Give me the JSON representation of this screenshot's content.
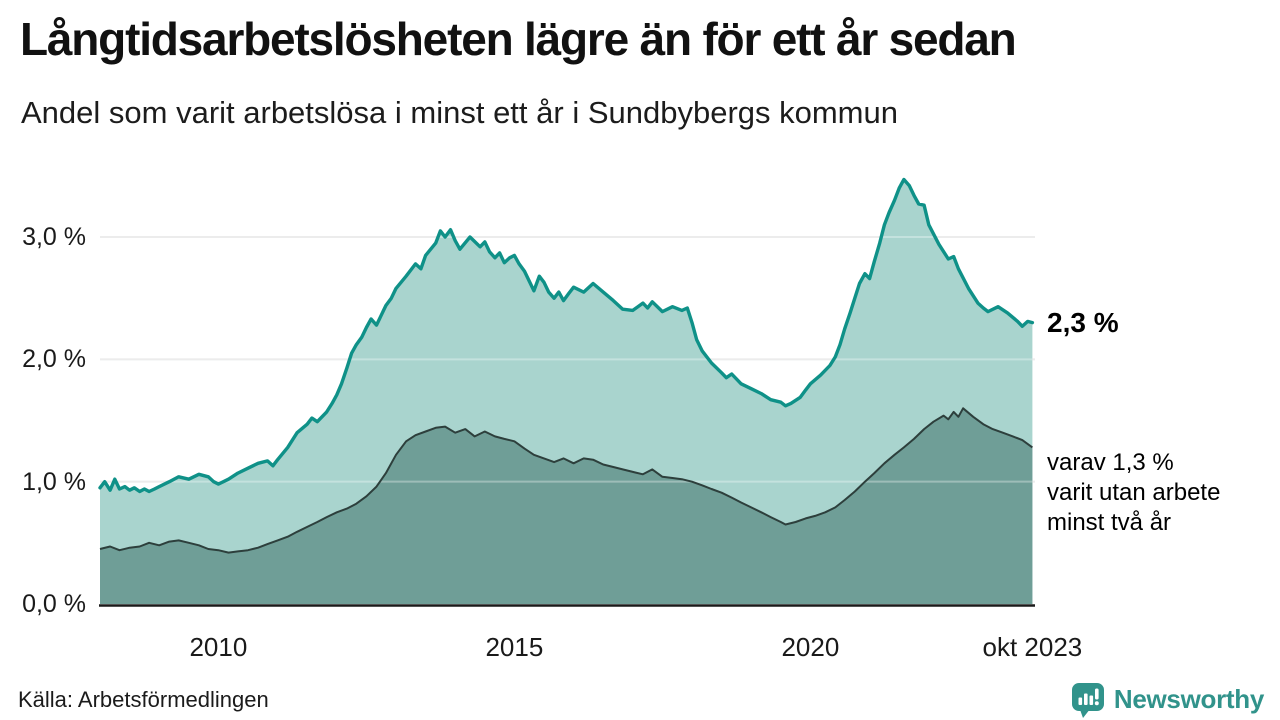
{
  "colors": {
    "accent_teal": "#0f9188",
    "light_fill": "#a9d4ce",
    "dark_fill": "#6f9e97",
    "dark_line": "#2d3f3c",
    "grid": "#e3e4e4",
    "baseline": "#1a1a1a",
    "brand_teal": "#31938b"
  },
  "source": {
    "text": "Källa: Arbetsförmedlingen"
  },
  "brand": {
    "name": "Newsworthy",
    "icon": "speech-bubble-bar-chart-icon"
  },
  "chart_data": {
    "type": "area",
    "title": "Långtidsarbetslösheten lägre än för ett år sedan",
    "subtitle": "Andel som varit arbetslösa i minst ett år i Sundbybergs kommun",
    "grid": true,
    "legend_position": "right-annotations",
    "x_axis": {
      "range": [
        2008.0,
        2023.79
      ],
      "ticks": [
        {
          "label": "2010",
          "year": 2010.0
        },
        {
          "label": "2015",
          "year": 2015.0
        },
        {
          "label": "2020",
          "year": 2020.0
        },
        {
          "label": "okt 2023",
          "year": 2023.75
        }
      ]
    },
    "y_axis": {
      "unit": "%",
      "range": [
        0,
        3.6
      ],
      "ticks": [
        {
          "label": "0,0 %",
          "value": 0
        },
        {
          "label": "1,0 %",
          "value": 1
        },
        {
          "label": "2,0 %",
          "value": 2
        },
        {
          "label": "3,0 %",
          "value": 3
        }
      ]
    },
    "annotations": {
      "latest": {
        "text": "2,3 %",
        "value": 2.3
      },
      "secondary": {
        "lines": [
          "varav 1,3 %",
          "varit utan arbete",
          "minst två år"
        ],
        "value": 1.3
      }
    },
    "series": [
      {
        "name": "Andel som varit arbetslösa minst ett år",
        "color": "#0f9188",
        "fill": "#a9d4ce",
        "latest_value": 2.3,
        "points": [
          [
            2008.0,
            0.95
          ],
          [
            2008.08,
            1.0
          ],
          [
            2008.17,
            0.93
          ],
          [
            2008.25,
            1.02
          ],
          [
            2008.33,
            0.94
          ],
          [
            2008.42,
            0.96
          ],
          [
            2008.5,
            0.93
          ],
          [
            2008.58,
            0.95
          ],
          [
            2008.67,
            0.92
          ],
          [
            2008.75,
            0.94
          ],
          [
            2008.83,
            0.92
          ],
          [
            2008.92,
            0.94
          ],
          [
            2009.0,
            0.96
          ],
          [
            2009.17,
            1.0
          ],
          [
            2009.33,
            1.04
          ],
          [
            2009.5,
            1.02
          ],
          [
            2009.67,
            1.06
          ],
          [
            2009.83,
            1.04
          ],
          [
            2009.92,
            1.0
          ],
          [
            2010.0,
            0.98
          ],
          [
            2010.17,
            1.02
          ],
          [
            2010.33,
            1.07
          ],
          [
            2010.5,
            1.11
          ],
          [
            2010.67,
            1.15
          ],
          [
            2010.83,
            1.17
          ],
          [
            2010.92,
            1.13
          ],
          [
            2011.0,
            1.18
          ],
          [
            2011.17,
            1.28
          ],
          [
            2011.33,
            1.4
          ],
          [
            2011.5,
            1.47
          ],
          [
            2011.58,
            1.52
          ],
          [
            2011.67,
            1.49
          ],
          [
            2011.83,
            1.57
          ],
          [
            2011.92,
            1.64
          ],
          [
            2012.0,
            1.71
          ],
          [
            2012.08,
            1.8
          ],
          [
            2012.17,
            1.93
          ],
          [
            2012.25,
            2.05
          ],
          [
            2012.33,
            2.12
          ],
          [
            2012.42,
            2.18
          ],
          [
            2012.5,
            2.26
          ],
          [
            2012.58,
            2.33
          ],
          [
            2012.67,
            2.28
          ],
          [
            2012.75,
            2.36
          ],
          [
            2012.83,
            2.44
          ],
          [
            2012.92,
            2.5
          ],
          [
            2013.0,
            2.58
          ],
          [
            2013.17,
            2.68
          ],
          [
            2013.33,
            2.78
          ],
          [
            2013.42,
            2.74
          ],
          [
            2013.5,
            2.85
          ],
          [
            2013.67,
            2.95
          ],
          [
            2013.75,
            3.05
          ],
          [
            2013.83,
            3.0
          ],
          [
            2013.92,
            3.06
          ],
          [
            2014.0,
            2.97
          ],
          [
            2014.08,
            2.9
          ],
          [
            2014.25,
            3.0
          ],
          [
            2014.42,
            2.92
          ],
          [
            2014.5,
            2.96
          ],
          [
            2014.58,
            2.88
          ],
          [
            2014.67,
            2.83
          ],
          [
            2014.75,
            2.87
          ],
          [
            2014.83,
            2.79
          ],
          [
            2014.92,
            2.83
          ],
          [
            2015.0,
            2.85
          ],
          [
            2015.08,
            2.78
          ],
          [
            2015.17,
            2.72
          ],
          [
            2015.25,
            2.64
          ],
          [
            2015.33,
            2.56
          ],
          [
            2015.42,
            2.68
          ],
          [
            2015.5,
            2.63
          ],
          [
            2015.58,
            2.55
          ],
          [
            2015.67,
            2.5
          ],
          [
            2015.75,
            2.55
          ],
          [
            2015.83,
            2.48
          ],
          [
            2015.92,
            2.54
          ],
          [
            2016.0,
            2.59
          ],
          [
            2016.17,
            2.55
          ],
          [
            2016.33,
            2.62
          ],
          [
            2016.5,
            2.55
          ],
          [
            2016.67,
            2.48
          ],
          [
            2016.83,
            2.41
          ],
          [
            2017.0,
            2.4
          ],
          [
            2017.17,
            2.46
          ],
          [
            2017.25,
            2.42
          ],
          [
            2017.33,
            2.47
          ],
          [
            2017.5,
            2.39
          ],
          [
            2017.67,
            2.43
          ],
          [
            2017.83,
            2.4
          ],
          [
            2017.92,
            2.42
          ],
          [
            2018.0,
            2.3
          ],
          [
            2018.08,
            2.16
          ],
          [
            2018.17,
            2.07
          ],
          [
            2018.33,
            1.97
          ],
          [
            2018.5,
            1.89
          ],
          [
            2018.58,
            1.85
          ],
          [
            2018.67,
            1.88
          ],
          [
            2018.83,
            1.8
          ],
          [
            2019.0,
            1.76
          ],
          [
            2019.17,
            1.72
          ],
          [
            2019.33,
            1.67
          ],
          [
            2019.5,
            1.65
          ],
          [
            2019.58,
            1.62
          ],
          [
            2019.67,
            1.64
          ],
          [
            2019.83,
            1.69
          ],
          [
            2019.92,
            1.75
          ],
          [
            2020.0,
            1.8
          ],
          [
            2020.17,
            1.87
          ],
          [
            2020.33,
            1.95
          ],
          [
            2020.42,
            2.02
          ],
          [
            2020.5,
            2.12
          ],
          [
            2020.58,
            2.25
          ],
          [
            2020.67,
            2.38
          ],
          [
            2020.75,
            2.5
          ],
          [
            2020.83,
            2.62
          ],
          [
            2020.92,
            2.7
          ],
          [
            2021.0,
            2.66
          ],
          [
            2021.08,
            2.8
          ],
          [
            2021.17,
            2.95
          ],
          [
            2021.25,
            3.1
          ],
          [
            2021.33,
            3.2
          ],
          [
            2021.42,
            3.3
          ],
          [
            2021.5,
            3.4
          ],
          [
            2021.58,
            3.47
          ],
          [
            2021.67,
            3.42
          ],
          [
            2021.75,
            3.34
          ],
          [
            2021.83,
            3.27
          ],
          [
            2021.92,
            3.26
          ],
          [
            2022.0,
            3.1
          ],
          [
            2022.17,
            2.94
          ],
          [
            2022.33,
            2.82
          ],
          [
            2022.42,
            2.84
          ],
          [
            2022.5,
            2.74
          ],
          [
            2022.67,
            2.58
          ],
          [
            2022.83,
            2.46
          ],
          [
            2022.92,
            2.42
          ],
          [
            2023.0,
            2.39
          ],
          [
            2023.17,
            2.43
          ],
          [
            2023.33,
            2.38
          ],
          [
            2023.5,
            2.31
          ],
          [
            2023.58,
            2.27
          ],
          [
            2023.67,
            2.31
          ],
          [
            2023.75,
            2.3
          ]
        ]
      },
      {
        "name": "varav utan arbete minst två år",
        "color": "#2d3f3c",
        "fill": "#6f9e97",
        "latest_value": 1.3,
        "points": [
          [
            2008.0,
            0.45
          ],
          [
            2008.17,
            0.47
          ],
          [
            2008.33,
            0.44
          ],
          [
            2008.5,
            0.46
          ],
          [
            2008.67,
            0.47
          ],
          [
            2008.83,
            0.5
          ],
          [
            2009.0,
            0.48
          ],
          [
            2009.17,
            0.51
          ],
          [
            2009.33,
            0.52
          ],
          [
            2009.5,
            0.5
          ],
          [
            2009.67,
            0.48
          ],
          [
            2009.83,
            0.45
          ],
          [
            2010.0,
            0.44
          ],
          [
            2010.17,
            0.42
          ],
          [
            2010.33,
            0.43
          ],
          [
            2010.5,
            0.44
          ],
          [
            2010.67,
            0.46
          ],
          [
            2010.83,
            0.49
          ],
          [
            2011.0,
            0.52
          ],
          [
            2011.17,
            0.55
          ],
          [
            2011.33,
            0.59
          ],
          [
            2011.5,
            0.63
          ],
          [
            2011.67,
            0.67
          ],
          [
            2011.83,
            0.71
          ],
          [
            2012.0,
            0.75
          ],
          [
            2012.17,
            0.78
          ],
          [
            2012.33,
            0.82
          ],
          [
            2012.5,
            0.88
          ],
          [
            2012.67,
            0.96
          ],
          [
            2012.83,
            1.07
          ],
          [
            2013.0,
            1.22
          ],
          [
            2013.17,
            1.33
          ],
          [
            2013.33,
            1.38
          ],
          [
            2013.5,
            1.41
          ],
          [
            2013.67,
            1.44
          ],
          [
            2013.83,
            1.45
          ],
          [
            2014.0,
            1.4
          ],
          [
            2014.17,
            1.43
          ],
          [
            2014.33,
            1.37
          ],
          [
            2014.5,
            1.41
          ],
          [
            2014.67,
            1.37
          ],
          [
            2014.83,
            1.35
          ],
          [
            2015.0,
            1.33
          ],
          [
            2015.17,
            1.27
          ],
          [
            2015.33,
            1.22
          ],
          [
            2015.5,
            1.19
          ],
          [
            2015.67,
            1.16
          ],
          [
            2015.83,
            1.19
          ],
          [
            2016.0,
            1.15
          ],
          [
            2016.17,
            1.19
          ],
          [
            2016.33,
            1.18
          ],
          [
            2016.5,
            1.14
          ],
          [
            2016.67,
            1.12
          ],
          [
            2016.83,
            1.1
          ],
          [
            2017.0,
            1.08
          ],
          [
            2017.17,
            1.06
          ],
          [
            2017.33,
            1.1
          ],
          [
            2017.5,
            1.04
          ],
          [
            2017.67,
            1.03
          ],
          [
            2017.83,
            1.02
          ],
          [
            2018.0,
            1.0
          ],
          [
            2018.17,
            0.97
          ],
          [
            2018.33,
            0.94
          ],
          [
            2018.5,
            0.91
          ],
          [
            2018.67,
            0.87
          ],
          [
            2018.83,
            0.83
          ],
          [
            2019.0,
            0.79
          ],
          [
            2019.17,
            0.75
          ],
          [
            2019.33,
            0.71
          ],
          [
            2019.5,
            0.67
          ],
          [
            2019.58,
            0.65
          ],
          [
            2019.75,
            0.67
          ],
          [
            2019.92,
            0.7
          ],
          [
            2020.08,
            0.72
          ],
          [
            2020.25,
            0.75
          ],
          [
            2020.42,
            0.79
          ],
          [
            2020.58,
            0.85
          ],
          [
            2020.75,
            0.92
          ],
          [
            2020.92,
            1.0
          ],
          [
            2021.08,
            1.07
          ],
          [
            2021.25,
            1.15
          ],
          [
            2021.42,
            1.22
          ],
          [
            2021.58,
            1.28
          ],
          [
            2021.75,
            1.35
          ],
          [
            2021.92,
            1.43
          ],
          [
            2022.08,
            1.49
          ],
          [
            2022.25,
            1.54
          ],
          [
            2022.33,
            1.51
          ],
          [
            2022.42,
            1.57
          ],
          [
            2022.5,
            1.53
          ],
          [
            2022.58,
            1.6
          ],
          [
            2022.75,
            1.53
          ],
          [
            2022.92,
            1.47
          ],
          [
            2023.08,
            1.43
          ],
          [
            2023.25,
            1.4
          ],
          [
            2023.42,
            1.37
          ],
          [
            2023.58,
            1.34
          ],
          [
            2023.75,
            1.28
          ]
        ]
      }
    ]
  }
}
